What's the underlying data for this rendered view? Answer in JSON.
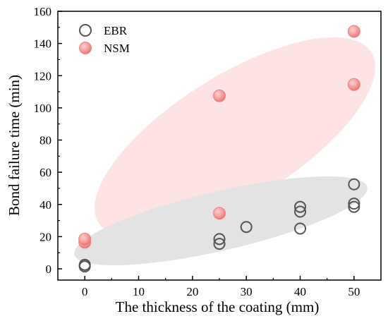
{
  "chart_data": {
    "type": "scatter",
    "xlabel": "The thickness of the coating (mm)",
    "ylabel": "Bond failure time (min)",
    "xlim": [
      -5,
      55
    ],
    "ylim": [
      -7,
      160
    ],
    "xticks": [
      0,
      10,
      20,
      30,
      40,
      50
    ],
    "yticks": [
      0,
      20,
      40,
      60,
      80,
      100,
      120,
      140,
      160
    ],
    "legend_position": "top-left",
    "series": [
      {
        "name": "EBR",
        "marker": "hollow-circle",
        "color": "#555555",
        "points": [
          {
            "x": 0,
            "y": 1.5
          },
          {
            "x": 0,
            "y": 2.5
          },
          {
            "x": 25,
            "y": 15.5
          },
          {
            "x": 25,
            "y": 18.5
          },
          {
            "x": 30,
            "y": 26
          },
          {
            "x": 40,
            "y": 25
          },
          {
            "x": 40,
            "y": 35.5
          },
          {
            "x": 40,
            "y": 38.5
          },
          {
            "x": 50,
            "y": 38.5
          },
          {
            "x": 50,
            "y": 40.5
          },
          {
            "x": 50,
            "y": 52.5
          }
        ]
      },
      {
        "name": "NSM",
        "marker": "filled-circle",
        "color": "#f08080",
        "points": [
          {
            "x": 0,
            "y": 16.5
          },
          {
            "x": 0,
            "y": 18.5
          },
          {
            "x": 25,
            "y": 34.5
          },
          {
            "x": 25,
            "y": 107.5
          },
          {
            "x": 50,
            "y": 114.5
          },
          {
            "x": 50,
            "y": 147.5
          }
        ]
      }
    ],
    "confidence_regions": [
      {
        "series": "NSM",
        "color": "#fde3e3"
      },
      {
        "series": "EBR",
        "color": "#e3e3e3"
      }
    ]
  }
}
